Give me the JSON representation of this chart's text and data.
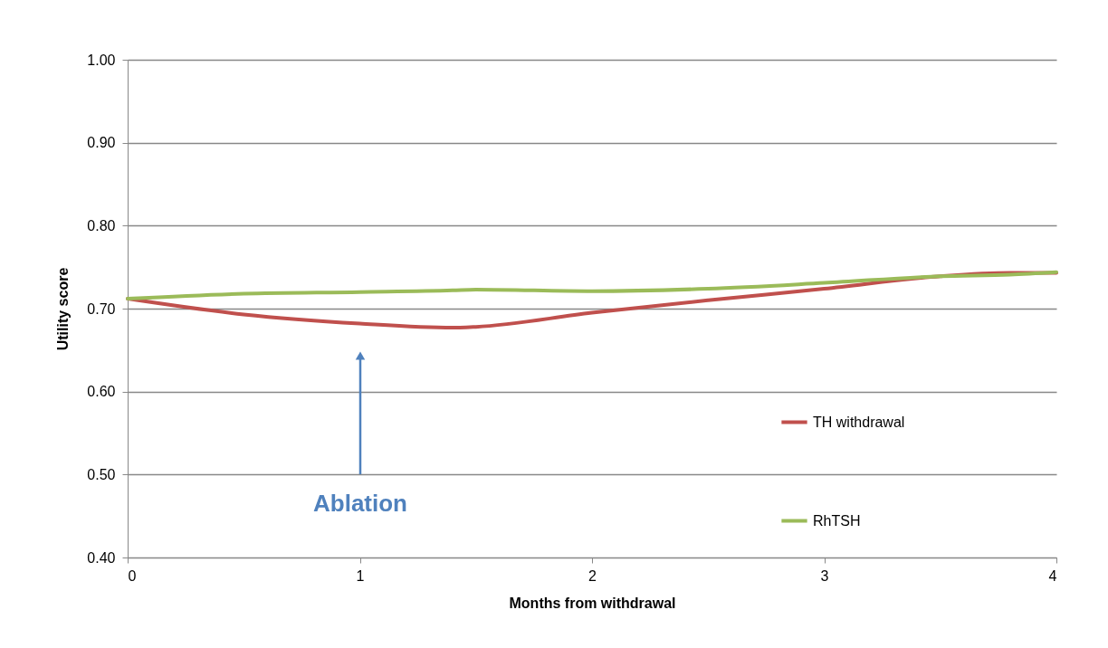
{
  "chart_data": {
    "type": "line",
    "xlabel": "Months from withdrawal",
    "ylabel": "Utility score",
    "x": [
      0,
      0.5,
      1,
      1.4,
      1.5,
      2,
      2.5,
      3,
      3.5,
      3.8,
      4
    ],
    "series": [
      {
        "name": "TH withdrawal",
        "color": "#c0504d",
        "values": [
          0.712,
          0.693,
          0.682,
          0.677,
          0.678,
          0.695,
          0.71,
          0.724,
          0.739,
          0.743,
          0.743
        ]
      },
      {
        "name": "RhTSH",
        "color": "#9bbb59",
        "values": [
          0.712,
          0.718,
          0.72,
          0.722,
          0.723,
          0.721,
          0.724,
          0.731,
          0.739,
          0.741,
          0.744
        ]
      }
    ],
    "xlim": [
      0,
      4
    ],
    "xticks": [
      0,
      1,
      2,
      3,
      4
    ],
    "ylim": [
      0.4,
      1.0
    ],
    "yticks": [
      {
        "value": 0.4,
        "label": "0.40"
      },
      {
        "value": 0.5,
        "label": "0.50"
      },
      {
        "value": 0.6,
        "label": "0.60"
      },
      {
        "value": 0.7,
        "label": "0.70"
      },
      {
        "value": 0.8,
        "label": "0.80"
      },
      {
        "value": 0.9,
        "label": "0.90"
      },
      {
        "value": 1.0,
        "label": "1.00"
      }
    ],
    "grid": "y",
    "legend": "right",
    "marker": "none",
    "line_style": "solid",
    "annotations": [
      "Ablation"
    ]
  }
}
